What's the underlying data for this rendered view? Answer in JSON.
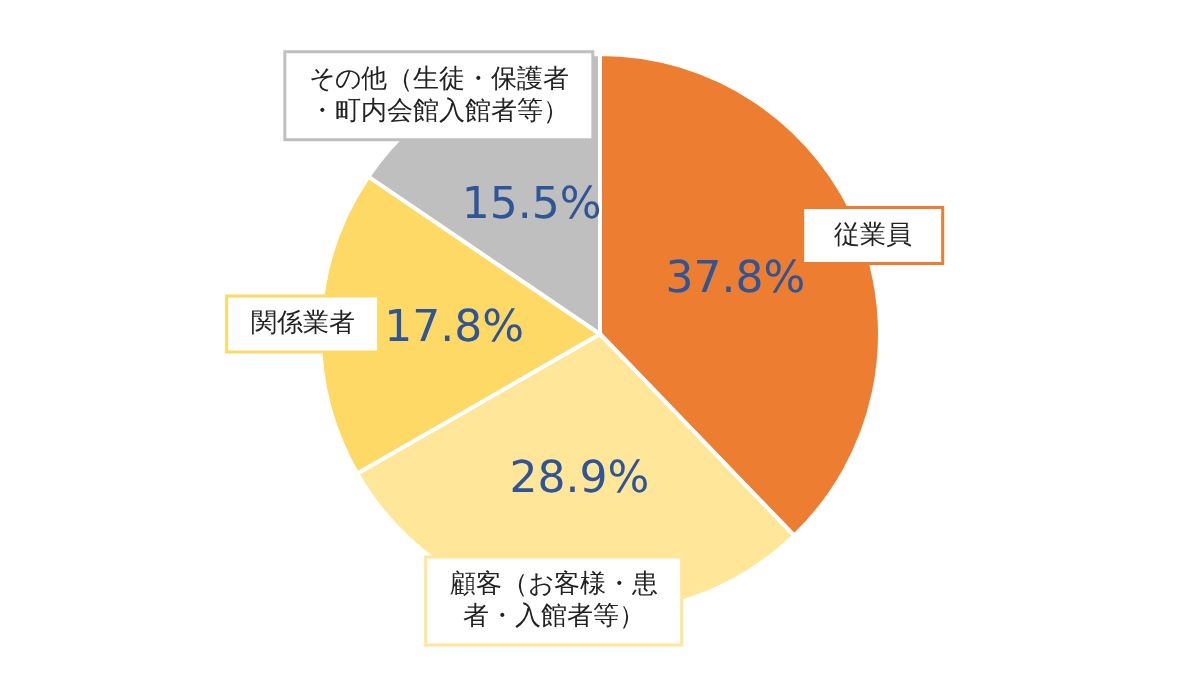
{
  "chart_data": {
    "type": "pie",
    "categories": [
      "従業員",
      "顧客（お客様・患者・入館者等）",
      "関係業者",
      "その他（生徒・保護者・町内会館入館者等）"
    ],
    "values": [
      37.8,
      28.9,
      17.8,
      15.5
    ],
    "colors": [
      "#ed7d31",
      "#ffe699",
      "#ffd966",
      "#bfbfbf"
    ],
    "value_labels": [
      "37.8%",
      "28.9%",
      "17.8%",
      "15.5%"
    ],
    "legend": false
  }
}
